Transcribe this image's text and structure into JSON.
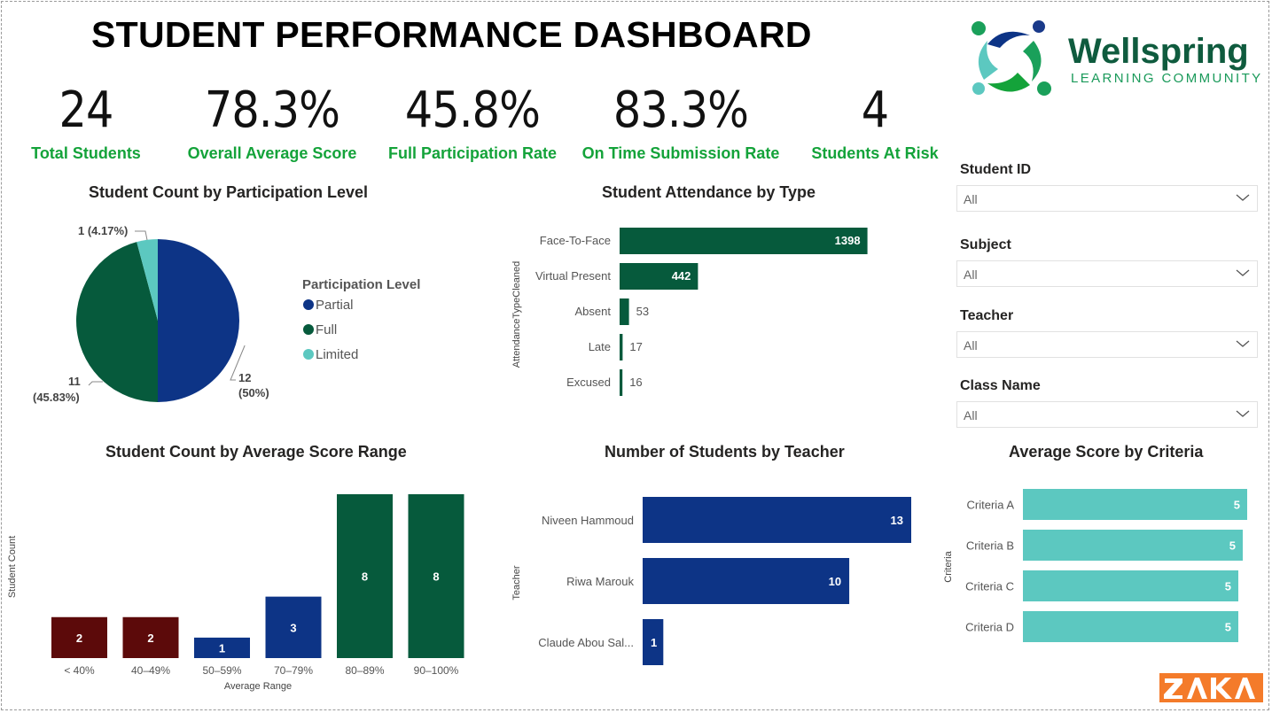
{
  "title": "STUDENT PERFORMANCE DASHBOARD",
  "logo": {
    "name": "Wellspring",
    "subtitle": "LEARNING COMMUNITY",
    "brand": "ZAKA"
  },
  "kpis": [
    {
      "value": "24",
      "label": "Total Students"
    },
    {
      "value": "78.3%",
      "label": "Overall Average Score"
    },
    {
      "value": "45.8%",
      "label": "Full Participation Rate"
    },
    {
      "value": "83.3%",
      "label": "On Time Submission Rate"
    },
    {
      "value": "4",
      "label": "Students At Risk"
    }
  ],
  "slicers": [
    {
      "label": "Student ID",
      "value": "All"
    },
    {
      "label": "Subject",
      "value": "All"
    },
    {
      "label": "Teacher",
      "value": "All"
    },
    {
      "label": "Class Name",
      "value": "All"
    }
  ],
  "colors": {
    "accent_green": "#14a33a",
    "dark_green": "#065a3c",
    "navy": "#0d3486",
    "teal": "#5cc8c0",
    "dark_red": "#5c0a0a"
  },
  "chart_data": [
    {
      "type": "pie",
      "title": "Student Count by Participation Level",
      "legend_title": "Participation Level",
      "legend_position": "right",
      "categories": [
        "Partial",
        "Full",
        "Limited"
      ],
      "values": [
        12,
        11,
        1
      ],
      "data_labels": [
        [
          "12",
          "(50%)"
        ],
        [
          "11",
          "(45.83%)"
        ],
        [
          "1 (4.17%)"
        ]
      ],
      "colors": [
        "#0d3486",
        "#065a3c",
        "#5cc8c0"
      ]
    },
    {
      "type": "bar",
      "orientation": "horizontal",
      "title": "Student Attendance by Type",
      "ylabel": "AttendanceTypeCleaned",
      "categories": [
        "Face-To-Face",
        "Virtual Present",
        "Absent",
        "Late",
        "Excused"
      ],
      "values": [
        1398,
        442,
        53,
        17,
        16
      ],
      "xlim": [
        0,
        1400
      ],
      "color": "#065a3c"
    },
    {
      "type": "bar",
      "title": "Student Count by Average Score Range",
      "xlabel": "Average Range",
      "ylabel": "Student Count",
      "categories": [
        "< 40%",
        "40–49%",
        "50–59%",
        "70–79%",
        "80–89%",
        "90–100%"
      ],
      "values": [
        2,
        2,
        1,
        3,
        8,
        8
      ],
      "ylim": [
        0,
        8
      ],
      "colors": [
        "#5c0a0a",
        "#5c0a0a",
        "#0d3486",
        "#0d3486",
        "#065a3c",
        "#065a3c"
      ]
    },
    {
      "type": "bar",
      "orientation": "horizontal",
      "title": "Number of Students by Teacher",
      "ylabel": "Teacher",
      "categories": [
        "Niveen Hammoud",
        "Riwa Marouk",
        "Claude Abou Sal..."
      ],
      "values": [
        13,
        10,
        1
      ],
      "xlim": [
        0,
        13
      ],
      "color": "#0d3486"
    },
    {
      "type": "bar",
      "orientation": "horizontal",
      "title": "Average Score by Criteria",
      "ylabel": "Criteria",
      "categories": [
        "Criteria A",
        "Criteria B",
        "Criteria C",
        "Criteria D"
      ],
      "values": [
        5,
        5,
        5,
        5
      ],
      "color": "#5cc8c0"
    }
  ]
}
